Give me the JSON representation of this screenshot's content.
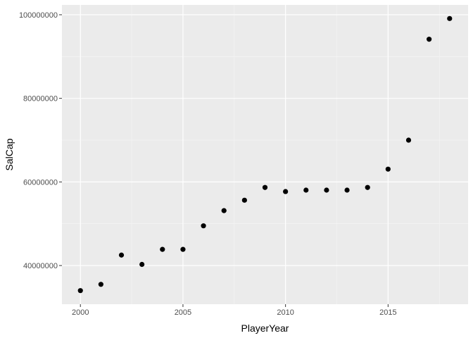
{
  "chart_data": {
    "type": "scatter",
    "title": "",
    "xlabel": "PlayerYear",
    "ylabel": "SalCap",
    "x": [
      2000,
      2001,
      2002,
      2003,
      2004,
      2005,
      2006,
      2007,
      2008,
      2009,
      2010,
      2011,
      2012,
      2013,
      2014,
      2015,
      2016,
      2017,
      2018
    ],
    "y": [
      34000000,
      35500000,
      42500000,
      40270000,
      43870000,
      43870000,
      49500000,
      53135000,
      55630000,
      58680000,
      57700000,
      58044000,
      58044000,
      58044000,
      58679000,
      63065000,
      70000000,
      94143000,
      99093000
    ],
    "xlim": [
      1999.1,
      2018.9
    ],
    "ylim": [
      30750000,
      102350000
    ],
    "x_ticks": [
      2000,
      2005,
      2010,
      2015
    ],
    "x_tick_labels": [
      "2000",
      "2005",
      "2010",
      "2015"
    ],
    "y_ticks": [
      40000000,
      60000000,
      80000000,
      100000000
    ],
    "y_tick_labels": [
      "40000000",
      "60000000",
      "80000000",
      "100000000"
    ],
    "grid": true,
    "colors": {
      "panel_background": "#ebebeb",
      "grid_major": "#ffffff",
      "grid_minor": "#f5f5f5",
      "point": "#000000",
      "tick_mark": "#333333",
      "tick_label": "#4d4d4d",
      "axis_title": "#000000"
    }
  }
}
